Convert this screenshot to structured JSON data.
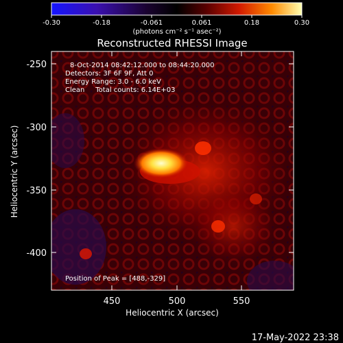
{
  "colorbar": {
    "ticks": [
      "-0.30",
      "-0.18",
      "-0.061",
      "0.061",
      "0.18",
      "0.30"
    ],
    "units": "(photons cm⁻² s⁻¹ asec⁻²)"
  },
  "title": "Reconstructed RHESSI Image",
  "info": {
    "line1": "8-Oct-2014 08:42:12.000 to 08:44:20.000",
    "line2": "Detectors: 3F 6F 9F, Att 0",
    "line3": "Energy Range: 3.0 - 6.0 keV",
    "line4": "Clean     Total counts: 6.14E+03"
  },
  "peak_label": "Position of Peak = [488,-329]",
  "axes": {
    "xlabel": "Heliocentric X (arcsec)",
    "ylabel": "Heliocentric Y (arcsec)",
    "xticks": [
      "450",
      "500",
      "550"
    ],
    "yticks": [
      "-250",
      "-300",
      "-350",
      "-400"
    ]
  },
  "timestamp": "17-May-2022 23:38"
}
